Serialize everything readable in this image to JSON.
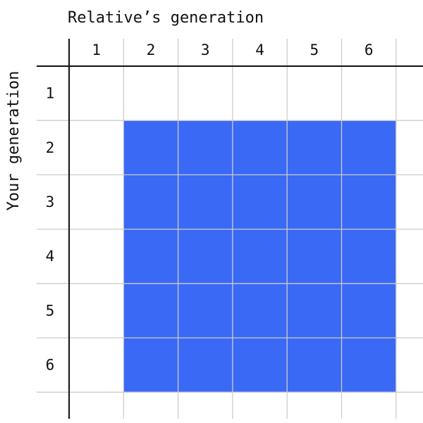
{
  "x_axis_title": "Relative’s generation",
  "y_axis_title": "Your generation",
  "columns": [
    "1",
    "2",
    "3",
    "4",
    "5",
    "6"
  ],
  "rows": [
    "1",
    "2",
    "3",
    "4",
    "5",
    "6"
  ],
  "colors": {
    "fill": "#3a69f5",
    "grid": "#cccccc",
    "axis": "#111111"
  },
  "chart_data": {
    "type": "heatmap",
    "xlabel": "Relative’s generation",
    "ylabel": "Your generation",
    "x": [
      1,
      2,
      3,
      4,
      5,
      6
    ],
    "y": [
      1,
      2,
      3,
      4,
      5,
      6
    ],
    "values": [
      [
        0,
        0,
        0,
        0,
        0,
        0
      ],
      [
        0,
        1,
        1,
        1,
        1,
        1
      ],
      [
        0,
        1,
        1,
        1,
        1,
        1
      ],
      [
        0,
        1,
        1,
        1,
        1,
        1
      ],
      [
        0,
        1,
        1,
        1,
        1,
        1
      ],
      [
        0,
        1,
        1,
        1,
        1,
        1
      ]
    ]
  }
}
